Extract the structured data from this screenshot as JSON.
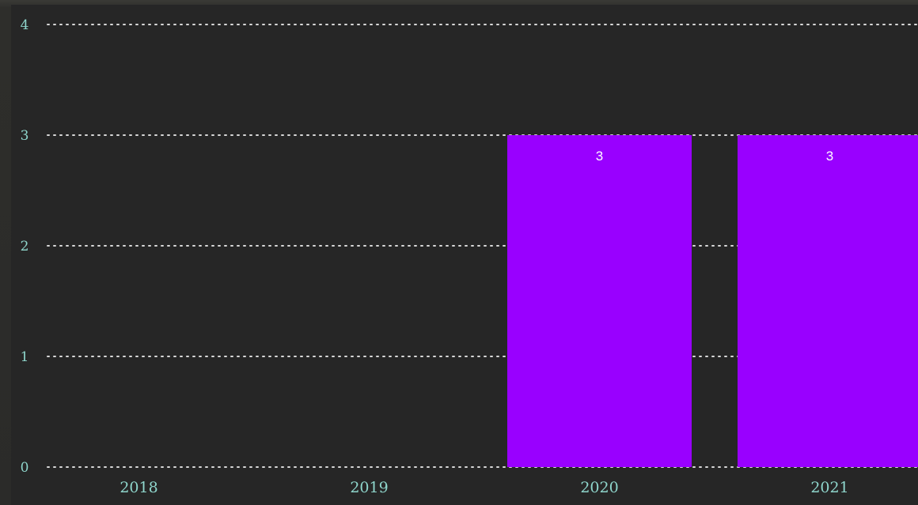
{
  "chart_data": {
    "type": "bar",
    "title": "",
    "xlabel": "",
    "ylabel": "",
    "categories": [
      "2018",
      "2019",
      "2020",
      "2021"
    ],
    "values": [
      0,
      0,
      3,
      3
    ],
    "data_labels": [
      "",
      "",
      "3",
      "3"
    ],
    "yticks": [
      "0",
      "1",
      "2",
      "3",
      "4"
    ],
    "ylim": [
      0,
      4
    ],
    "grid": true,
    "grid_style": "dotted",
    "legend": "none",
    "colors": {
      "bar": "#9900ff",
      "background": "#262626",
      "grid": "#d8d8d8",
      "tick_text": "#8fd6cc",
      "label_text": "#ffffff"
    }
  }
}
